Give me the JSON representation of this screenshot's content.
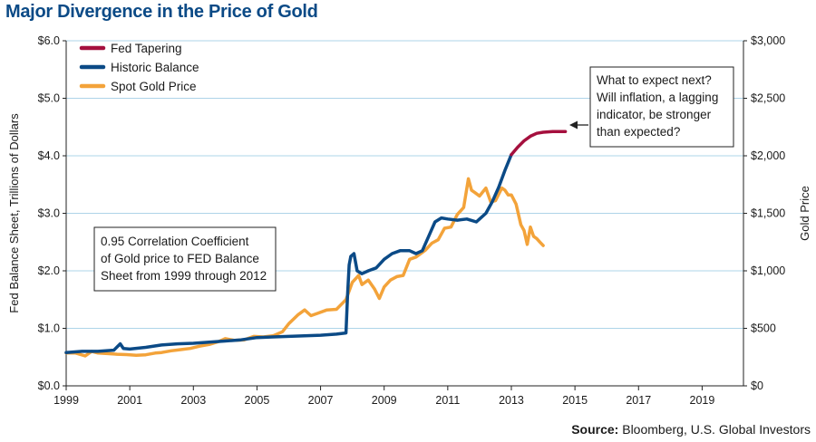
{
  "title": "Major Divergence in the Price of Gold",
  "source": {
    "label": "Source:",
    "text": "Bloomberg, U.S. Global Investors"
  },
  "colors": {
    "fed_tapering": "#a5103e",
    "historic_balance": "#0b4a86",
    "spot_gold": "#f3a33a",
    "grid": "#aed4e8",
    "axis": "#222222",
    "title": "#0b4a86"
  },
  "chart_data": {
    "type": "line",
    "title": "Major Divergence in the Price of Gold",
    "xlabel": "",
    "ylabel_left": "Fed Balance Sheet, Trillions of Dollars",
    "ylabel_right": "Gold Price",
    "xlim": [
      1999,
      2020.3
    ],
    "ylim_left": [
      0,
      6
    ],
    "ylim_right": [
      0,
      3000
    ],
    "x_ticks": [
      "1999",
      "2001",
      "2003",
      "2005",
      "2007",
      "2009",
      "2011",
      "2013",
      "2015",
      "2017",
      "2019"
    ],
    "y_ticks_left": [
      "$0.0",
      "$1.0",
      "$2.0",
      "$3.0",
      "$4.0",
      "$5.0",
      "$6.0"
    ],
    "y_ticks_right": [
      "$0",
      "$500",
      "$1,000",
      "$1,500",
      "$2,000",
      "$2,500",
      "$3,000"
    ],
    "grid": true,
    "legend_position": "top-left",
    "series": [
      {
        "name": "Fed Tapering",
        "axis": "left",
        "color": "#a5103e",
        "points": [
          [
            2013.0,
            4.02
          ],
          [
            2013.2,
            4.15
          ],
          [
            2013.4,
            4.26
          ],
          [
            2013.6,
            4.34
          ],
          [
            2013.8,
            4.39
          ],
          [
            2014.0,
            4.41
          ],
          [
            2014.3,
            4.42
          ],
          [
            2014.7,
            4.42
          ]
        ]
      },
      {
        "name": "Historic Balance",
        "axis": "left",
        "color": "#0b4a86",
        "points": [
          [
            1999.0,
            0.58
          ],
          [
            1999.5,
            0.6
          ],
          [
            2000.0,
            0.6
          ],
          [
            2000.5,
            0.62
          ],
          [
            2000.7,
            0.73
          ],
          [
            2000.8,
            0.65
          ],
          [
            2001.0,
            0.64
          ],
          [
            2001.5,
            0.67
          ],
          [
            2002.0,
            0.71
          ],
          [
            2002.5,
            0.73
          ],
          [
            2003.0,
            0.74
          ],
          [
            2003.5,
            0.76
          ],
          [
            2004.0,
            0.78
          ],
          [
            2004.5,
            0.8
          ],
          [
            2005.0,
            0.84
          ],
          [
            2005.5,
            0.85
          ],
          [
            2006.0,
            0.86
          ],
          [
            2006.5,
            0.87
          ],
          [
            2007.0,
            0.88
          ],
          [
            2007.5,
            0.9
          ],
          [
            2007.8,
            0.92
          ],
          [
            2007.85,
            1.6
          ],
          [
            2007.9,
            2.1
          ],
          [
            2007.95,
            2.25
          ],
          [
            2008.05,
            2.3
          ],
          [
            2008.15,
            2.0
          ],
          [
            2008.3,
            1.95
          ],
          [
            2008.5,
            2.0
          ],
          [
            2008.75,
            2.05
          ],
          [
            2009.0,
            2.2
          ],
          [
            2009.25,
            2.3
          ],
          [
            2009.5,
            2.35
          ],
          [
            2009.8,
            2.35
          ],
          [
            2010.0,
            2.3
          ],
          [
            2010.2,
            2.35
          ],
          [
            2010.4,
            2.6
          ],
          [
            2010.6,
            2.85
          ],
          [
            2010.8,
            2.92
          ],
          [
            2011.0,
            2.9
          ],
          [
            2011.3,
            2.88
          ],
          [
            2011.6,
            2.9
          ],
          [
            2011.9,
            2.85
          ],
          [
            2012.0,
            2.9
          ],
          [
            2012.2,
            3.0
          ],
          [
            2012.4,
            3.2
          ],
          [
            2012.6,
            3.45
          ],
          [
            2012.8,
            3.75
          ],
          [
            2013.0,
            4.02
          ]
        ]
      },
      {
        "name": "Spot Gold Price",
        "axis": "right",
        "color": "#f3a33a",
        "points": [
          [
            1999.0,
            287
          ],
          [
            1999.3,
            285
          ],
          [
            1999.6,
            260
          ],
          [
            1999.8,
            300
          ],
          [
            2000.0,
            285
          ],
          [
            2000.3,
            280
          ],
          [
            2000.6,
            275
          ],
          [
            2000.9,
            272
          ],
          [
            2001.2,
            265
          ],
          [
            2001.5,
            270
          ],
          [
            2001.8,
            285
          ],
          [
            2002.0,
            290
          ],
          [
            2002.3,
            305
          ],
          [
            2002.6,
            315
          ],
          [
            2002.9,
            325
          ],
          [
            2003.2,
            345
          ],
          [
            2003.5,
            360
          ],
          [
            2003.8,
            385
          ],
          [
            2004.0,
            410
          ],
          [
            2004.3,
            395
          ],
          [
            2004.6,
            400
          ],
          [
            2004.9,
            430
          ],
          [
            2005.2,
            425
          ],
          [
            2005.5,
            435
          ],
          [
            2005.8,
            470
          ],
          [
            2006.0,
            540
          ],
          [
            2006.3,
            620
          ],
          [
            2006.5,
            660
          ],
          [
            2006.7,
            610
          ],
          [
            2006.9,
            630
          ],
          [
            2007.2,
            660
          ],
          [
            2007.5,
            665
          ],
          [
            2007.8,
            750
          ],
          [
            2008.0,
            900
          ],
          [
            2008.2,
            960
          ],
          [
            2008.3,
            880
          ],
          [
            2008.5,
            920
          ],
          [
            2008.7,
            840
          ],
          [
            2008.85,
            760
          ],
          [
            2009.0,
            860
          ],
          [
            2009.2,
            920
          ],
          [
            2009.4,
            950
          ],
          [
            2009.6,
            960
          ],
          [
            2009.8,
            1100
          ],
          [
            2010.0,
            1120
          ],
          [
            2010.3,
            1180
          ],
          [
            2010.5,
            1240
          ],
          [
            2010.7,
            1270
          ],
          [
            2010.9,
            1370
          ],
          [
            2011.1,
            1380
          ],
          [
            2011.3,
            1490
          ],
          [
            2011.5,
            1550
          ],
          [
            2011.65,
            1800
          ],
          [
            2011.75,
            1700
          ],
          [
            2011.85,
            1680
          ],
          [
            2012.0,
            1650
          ],
          [
            2012.2,
            1720
          ],
          [
            2012.35,
            1600
          ],
          [
            2012.5,
            1610
          ],
          [
            2012.7,
            1720
          ],
          [
            2012.8,
            1700
          ],
          [
            2012.9,
            1660
          ],
          [
            2013.0,
            1660
          ],
          [
            2013.15,
            1580
          ],
          [
            2013.3,
            1400
          ],
          [
            2013.4,
            1350
          ],
          [
            2013.5,
            1230
          ],
          [
            2013.6,
            1380
          ],
          [
            2013.7,
            1300
          ],
          [
            2013.8,
            1280
          ],
          [
            2013.9,
            1250
          ],
          [
            2014.0,
            1220
          ]
        ]
      }
    ],
    "annotations": [
      {
        "lines": [
          "0.95 Correlation Coefficient",
          "of Gold price to FED Balance",
          "Sheet from 1999 through 2012"
        ]
      },
      {
        "lines": [
          "What to expect next?",
          "Will inflation, a lagging",
          "indicator, be stronger",
          "than expected?"
        ]
      }
    ]
  }
}
